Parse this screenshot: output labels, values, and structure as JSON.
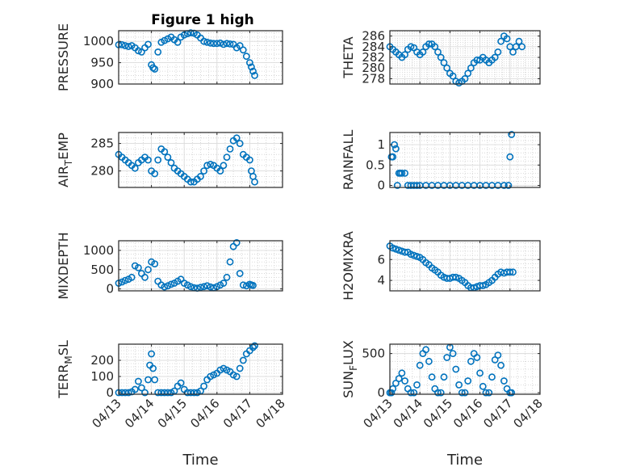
{
  "figure": {
    "title": "Figure 1 high",
    "x_tick_labels": [
      "04/13",
      "04/14",
      "04/15",
      "04/16",
      "04/17",
      "04/18"
    ],
    "xlabel": "Time",
    "marker_color": "#0072BD"
  },
  "chart_data": [
    {
      "type": "scatter",
      "ylabel": "PRESSURE",
      "ylim": [
        900,
        1025
      ],
      "yticks": [
        900,
        950,
        1000
      ],
      "xlim": [
        0,
        5
      ],
      "x": [
        0.0,
        0.1,
        0.2,
        0.3,
        0.4,
        0.5,
        0.6,
        0.7,
        0.8,
        0.9,
        1.0,
        1.05,
        1.1,
        1.2,
        1.3,
        1.4,
        1.5,
        1.6,
        1.7,
        1.8,
        1.9,
        2.0,
        2.1,
        2.2,
        2.3,
        2.4,
        2.5,
        2.6,
        2.7,
        2.8,
        2.9,
        3.0,
        3.1,
        3.2,
        3.3,
        3.4,
        3.5,
        3.6,
        3.7,
        3.8,
        3.9,
        4.0,
        4.05,
        4.1,
        4.15
      ],
      "y": [
        992,
        992,
        990,
        988,
        990,
        985,
        978,
        975,
        985,
        993,
        945,
        938,
        935,
        975,
        998,
        1002,
        1006,
        1010,
        1004,
        998,
        1010,
        1015,
        1018,
        1020,
        1019,
        1015,
        1008,
        1000,
        998,
        996,
        995,
        995,
        996,
        993,
        995,
        994,
        993,
        985,
        990,
        980,
        965,
        950,
        940,
        930,
        920
      ]
    },
    {
      "type": "scatter",
      "ylabel": "THETA",
      "ylim": [
        277,
        287
      ],
      "yticks": [
        278,
        280,
        282,
        284,
        286
      ],
      "xlim": [
        0,
        5
      ],
      "x": [
        0.0,
        0.1,
        0.2,
        0.3,
        0.4,
        0.5,
        0.6,
        0.7,
        0.8,
        0.9,
        1.0,
        1.1,
        1.2,
        1.3,
        1.4,
        1.5,
        1.6,
        1.7,
        1.8,
        1.9,
        2.0,
        2.1,
        2.2,
        2.3,
        2.4,
        2.5,
        2.6,
        2.7,
        2.8,
        2.9,
        3.0,
        3.1,
        3.2,
        3.3,
        3.4,
        3.5,
        3.6,
        3.7,
        3.8,
        3.9,
        4.0,
        4.1,
        4.2,
        4.3,
        4.4
      ],
      "y": [
        284,
        283.5,
        283,
        282.5,
        282,
        282.5,
        283.5,
        284,
        283.8,
        283,
        282.5,
        283,
        284,
        284.5,
        284.5,
        284,
        283,
        282,
        281,
        280,
        279,
        278.5,
        277.5,
        277.2,
        277.5,
        278,
        279,
        280,
        281,
        281.5,
        281.5,
        282,
        281.5,
        281,
        281.5,
        282,
        283,
        285,
        286,
        285.5,
        284,
        283,
        284,
        285,
        284
      ]
    },
    {
      "type": "scatter",
      "ylabel": "AIR_TEMP",
      "ylim": [
        277,
        287
      ],
      "yticks": [
        280,
        285
      ],
      "xlim": [
        0,
        5
      ],
      "x": [
        0.0,
        0.1,
        0.2,
        0.3,
        0.4,
        0.5,
        0.6,
        0.7,
        0.8,
        0.9,
        1.0,
        1.1,
        1.2,
        1.3,
        1.4,
        1.5,
        1.6,
        1.7,
        1.8,
        1.9,
        2.0,
        2.1,
        2.2,
        2.3,
        2.4,
        2.5,
        2.6,
        2.7,
        2.8,
        2.9,
        3.0,
        3.1,
        3.2,
        3.3,
        3.4,
        3.5,
        3.6,
        3.7,
        3.8,
        3.9,
        4.0,
        4.05,
        4.1,
        4.15
      ],
      "y": [
        283,
        282.5,
        282,
        281.5,
        281,
        280.5,
        281.5,
        282,
        282.5,
        282,
        280,
        279.5,
        282,
        284,
        283.5,
        282.5,
        281.5,
        280.5,
        280,
        279.5,
        279,
        278.5,
        278,
        278,
        278.5,
        279,
        280,
        281,
        281.2,
        281,
        280.5,
        280,
        281,
        282.5,
        284,
        285.5,
        286,
        285,
        283,
        282.5,
        282,
        280,
        279,
        278
      ]
    },
    {
      "type": "scatter",
      "ylabel": "RAINFALL",
      "ylim": [
        -0.05,
        1.3
      ],
      "yticks": [
        0,
        0.5,
        1
      ],
      "xlim": [
        0,
        5
      ],
      "x": [
        0.05,
        0.1,
        0.15,
        0.2,
        0.25,
        0.3,
        0.35,
        0.4,
        0.5,
        0.6,
        0.7,
        0.8,
        0.9,
        1.0,
        1.2,
        1.4,
        1.6,
        1.8,
        2.0,
        2.2,
        2.4,
        2.6,
        2.8,
        3.0,
        3.2,
        3.4,
        3.6,
        3.8,
        3.95,
        4.0,
        4.05
      ],
      "y": [
        0.7,
        0.7,
        1.0,
        0.9,
        0.0,
        0.3,
        0.3,
        0.3,
        0.3,
        0.0,
        0.0,
        0.0,
        0.0,
        0.0,
        0.0,
        0.0,
        0.0,
        0.0,
        0.0,
        0.0,
        0.0,
        0.0,
        0.0,
        0.0,
        0.0,
        0.0,
        0.0,
        0.0,
        0.0,
        0.7,
        1.25
      ]
    },
    {
      "type": "scatter",
      "ylabel": "MIXDEPTH",
      "ylim": [
        -50,
        1250
      ],
      "yticks": [
        0,
        500,
        1000
      ],
      "xlim": [
        0,
        5
      ],
      "x": [
        0.0,
        0.1,
        0.2,
        0.3,
        0.4,
        0.5,
        0.6,
        0.7,
        0.8,
        0.9,
        1.0,
        1.1,
        1.2,
        1.3,
        1.4,
        1.5,
        1.6,
        1.7,
        1.8,
        1.9,
        2.0,
        2.1,
        2.2,
        2.3,
        2.4,
        2.5,
        2.6,
        2.7,
        2.8,
        2.9,
        3.0,
        3.1,
        3.2,
        3.3,
        3.4,
        3.5,
        3.6,
        3.7,
        3.8,
        3.9,
        4.0,
        4.05,
        4.1
      ],
      "y": [
        150,
        180,
        220,
        250,
        300,
        600,
        550,
        400,
        300,
        500,
        700,
        650,
        200,
        100,
        50,
        80,
        120,
        150,
        200,
        250,
        150,
        100,
        60,
        30,
        20,
        40,
        60,
        80,
        50,
        30,
        60,
        100,
        150,
        300,
        700,
        1100,
        1200,
        400,
        100,
        80,
        120,
        100,
        90
      ]
    },
    {
      "type": "scatter",
      "ylabel": "H2OMIXRA",
      "ylim": [
        3.0,
        7.8
      ],
      "yticks": [
        4,
        6
      ],
      "xlim": [
        0,
        5
      ],
      "x": [
        0.0,
        0.1,
        0.2,
        0.3,
        0.4,
        0.5,
        0.6,
        0.7,
        0.8,
        0.9,
        1.0,
        1.1,
        1.2,
        1.3,
        1.4,
        1.5,
        1.6,
        1.7,
        1.8,
        1.9,
        2.0,
        2.1,
        2.2,
        2.3,
        2.4,
        2.5,
        2.6,
        2.7,
        2.8,
        2.9,
        3.0,
        3.1,
        3.2,
        3.3,
        3.4,
        3.5,
        3.6,
        3.7,
        3.8,
        3.9,
        4.0,
        4.1
      ],
      "y": [
        7.3,
        7.1,
        7.0,
        6.9,
        6.8,
        6.7,
        6.7,
        6.5,
        6.4,
        6.3,
        6.2,
        6.0,
        5.7,
        5.5,
        5.2,
        5.0,
        4.8,
        4.5,
        4.3,
        4.2,
        4.2,
        4.3,
        4.3,
        4.2,
        4.0,
        3.8,
        3.5,
        3.3,
        3.3,
        3.4,
        3.5,
        3.5,
        3.6,
        3.8,
        4.0,
        4.3,
        4.6,
        4.8,
        4.7,
        4.8,
        4.8,
        4.8
      ]
    },
    {
      "type": "scatter",
      "ylabel": "TERR_MSL",
      "ylim": [
        -10,
        300
      ],
      "yticks": [
        0,
        100,
        200
      ],
      "xlim": [
        0,
        5
      ],
      "x": [
        0.0,
        0.1,
        0.2,
        0.3,
        0.4,
        0.5,
        0.6,
        0.7,
        0.8,
        0.9,
        0.95,
        1.0,
        1.05,
        1.1,
        1.2,
        1.3,
        1.4,
        1.5,
        1.6,
        1.7,
        1.8,
        1.9,
        2.0,
        2.1,
        2.2,
        2.3,
        2.4,
        2.5,
        2.6,
        2.7,
        2.8,
        2.9,
        3.0,
        3.1,
        3.2,
        3.3,
        3.4,
        3.5,
        3.6,
        3.7,
        3.8,
        3.9,
        4.0,
        4.1,
        4.15
      ],
      "y": [
        0,
        0,
        0,
        0,
        5,
        20,
        70,
        30,
        0,
        80,
        170,
        240,
        150,
        80,
        0,
        0,
        0,
        0,
        0,
        10,
        40,
        60,
        20,
        0,
        0,
        0,
        0,
        10,
        40,
        80,
        100,
        110,
        120,
        140,
        150,
        140,
        130,
        110,
        100,
        150,
        200,
        240,
        260,
        280,
        290
      ]
    },
    {
      "type": "scatter",
      "ylabel": "SUN_FLUX",
      "ylim": [
        -20,
        620
      ],
      "yticks": [
        0,
        500
      ],
      "xlim": [
        0,
        5
      ],
      "x": [
        0.0,
        0.05,
        0.1,
        0.2,
        0.3,
        0.4,
        0.5,
        0.6,
        0.7,
        0.8,
        0.9,
        1.0,
        1.1,
        1.2,
        1.3,
        1.4,
        1.5,
        1.6,
        1.7,
        1.8,
        1.9,
        2.0,
        2.1,
        2.2,
        2.3,
        2.4,
        2.5,
        2.6,
        2.7,
        2.8,
        2.9,
        3.0,
        3.1,
        3.2,
        3.3,
        3.4,
        3.5,
        3.6,
        3.7,
        3.8,
        3.9,
        4.0,
        4.05
      ],
      "y": [
        0,
        0,
        50,
        120,
        180,
        250,
        150,
        50,
        0,
        0,
        100,
        350,
        500,
        550,
        400,
        200,
        50,
        0,
        0,
        200,
        450,
        580,
        500,
        300,
        100,
        0,
        0,
        150,
        400,
        500,
        450,
        250,
        80,
        0,
        0,
        200,
        420,
        480,
        350,
        150,
        50,
        0,
        0
      ]
    }
  ]
}
